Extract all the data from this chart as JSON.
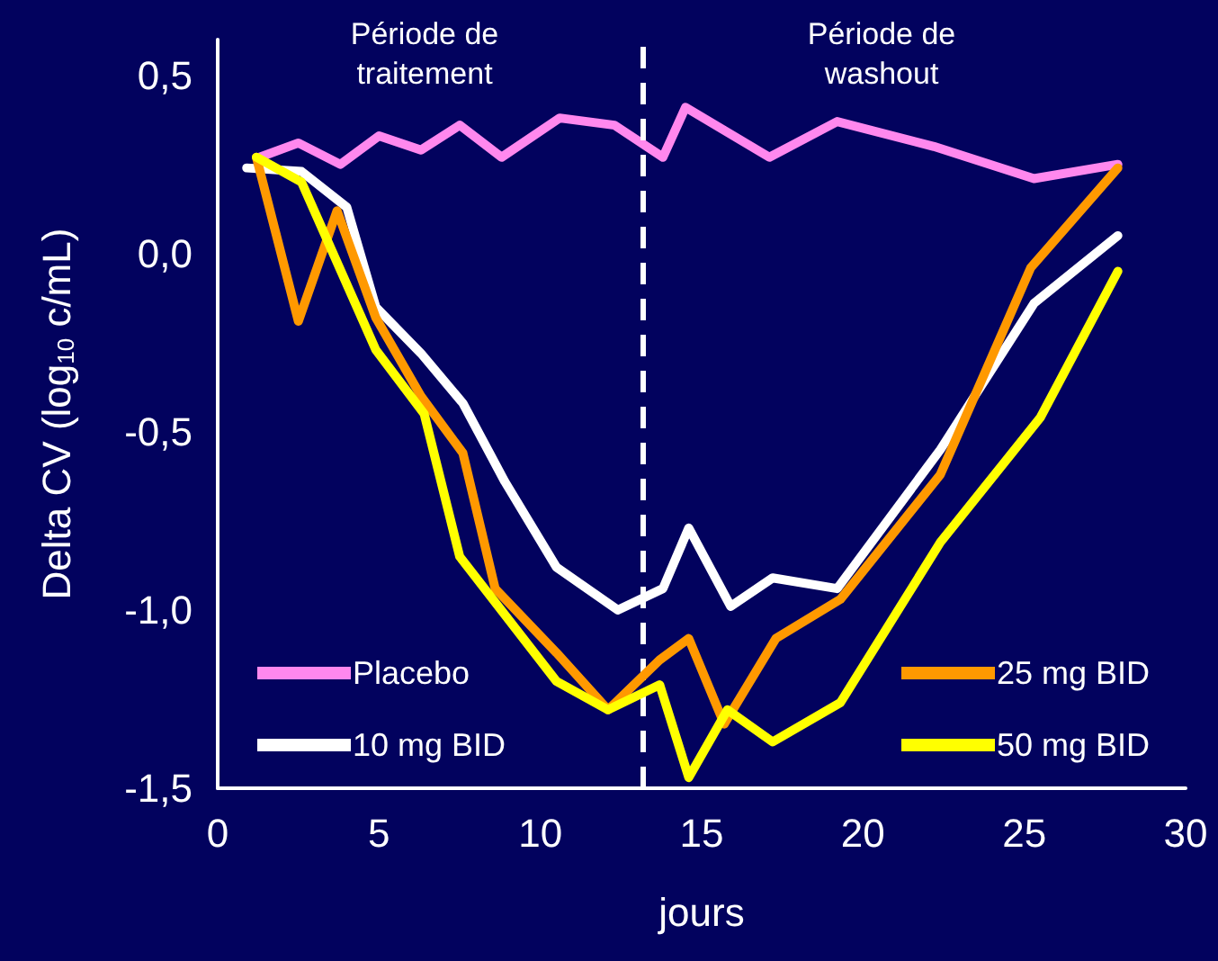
{
  "chart_data": {
    "type": "line",
    "xlabel": "jours",
    "ylabel": "Delta CV (log$_{10}$ c/mL)",
    "annotations": [
      "Période de traitement",
      "Période de washout"
    ],
    "xlim": [
      0,
      30
    ],
    "xticks": [
      0,
      5,
      10,
      15,
      20,
      25,
      30
    ],
    "ylim": [
      -1.5,
      0.6
    ],
    "yticks": [
      {
        "value": -1.5,
        "label": "-1,5"
      },
      {
        "value": -1,
        "label": "-1,0"
      },
      {
        "value": -0.5,
        "label": "-0,5"
      },
      {
        "value": 0,
        "label": "0,0"
      },
      {
        "value": 0.5,
        "label": "0,5"
      }
    ],
    "grid": false,
    "legend": "bottom",
    "marker": "none",
    "line_style": "solid",
    "ref_lines": [
      {
        "axis": "x",
        "value": 13.2,
        "label": null,
        "color": "#ffffff",
        "line_style": "dashed"
      }
    ],
    "series": [
      {
        "name": "Placebo",
        "color": "#ff88ee",
        "x": [
          1.3,
          2.5,
          3.8,
          5.0,
          6.3,
          7.5,
          8.8,
          10.6,
          12.3,
          13.8,
          14.5,
          17.1,
          19.2,
          22.2,
          25.3,
          27.9
        ],
        "values": [
          0.27,
          0.31,
          0.25,
          0.33,
          0.29,
          0.36,
          0.27,
          0.38,
          0.36,
          0.27,
          0.41,
          0.27,
          0.37,
          0.3,
          0.21,
          0.25
        ]
      },
      {
        "name": "10 mg BID",
        "color": "#ffffff",
        "x": [
          0.9,
          2.6,
          4.0,
          4.9,
          6.3,
          7.6,
          8.9,
          10.5,
          12.4,
          13.8,
          14.6,
          15.9,
          17.2,
          19.2,
          22.4,
          25.3,
          27.9
        ],
        "values": [
          0.24,
          0.23,
          0.13,
          -0.15,
          -0.28,
          -0.42,
          -0.64,
          -0.88,
          -1.0,
          -0.94,
          -0.77,
          -0.99,
          -0.91,
          -0.94,
          -0.55,
          -0.14,
          0.05
        ]
      },
      {
        "name": "25 mg BID",
        "color": "#ff9900",
        "x": [
          1.2,
          2.5,
          3.7,
          4.9,
          6.3,
          7.6,
          8.6,
          10.5,
          12.1,
          13.7,
          14.6,
          15.7,
          17.3,
          19.3,
          22.4,
          25.2,
          27.9
        ],
        "values": [
          0.27,
          -0.19,
          0.12,
          -0.18,
          -0.4,
          -0.56,
          -0.94,
          -1.12,
          -1.28,
          -1.14,
          -1.08,
          -1.32,
          -1.08,
          -0.97,
          -0.62,
          -0.04,
          0.24
        ]
      },
      {
        "name": "50 mg BID",
        "color": "#ffff00",
        "x": [
          1.2,
          2.6,
          4.9,
          6.4,
          7.5,
          10.5,
          12.1,
          13.7,
          14.6,
          15.8,
          17.2,
          19.3,
          22.4,
          25.5,
          27.9
        ],
        "values": [
          0.27,
          0.2,
          -0.27,
          -0.45,
          -0.85,
          -1.2,
          -1.28,
          -1.21,
          -1.47,
          -1.28,
          -1.37,
          -1.26,
          -0.81,
          -0.46,
          -0.05
        ]
      }
    ]
  }
}
